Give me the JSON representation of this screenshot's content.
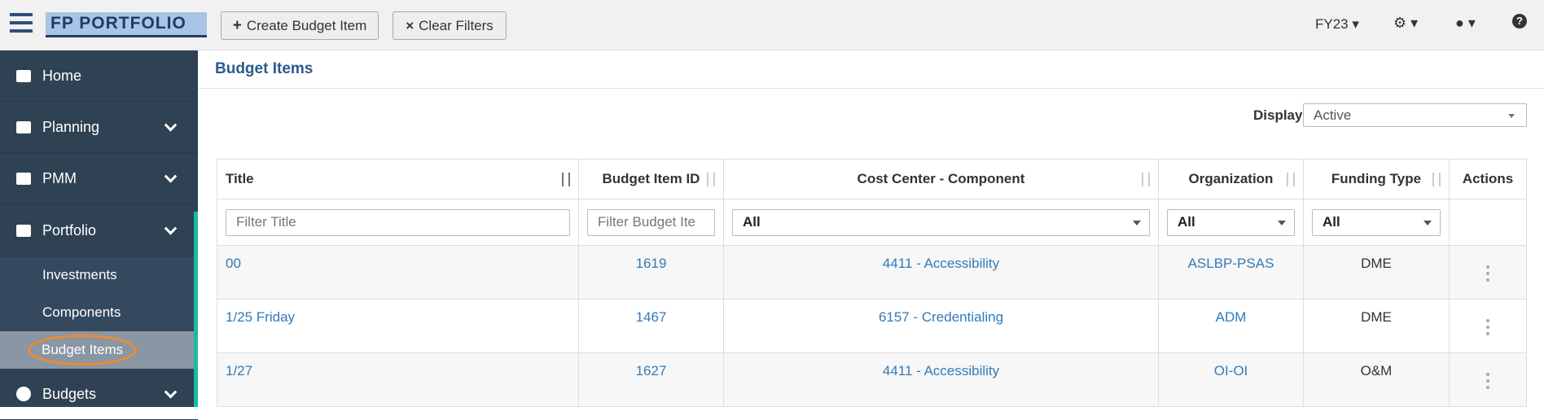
{
  "topbar": {
    "logo": "FP PORTFOLIO",
    "buttons": [
      "Create Budget Item",
      "Clear Filters"
    ],
    "fiscal_year": "FY23"
  },
  "sidebar": {
    "items": [
      "Home",
      "Planning",
      "PMM",
      "Portfolio"
    ],
    "subitems": [
      "Investments",
      "Components",
      "Budget Items"
    ],
    "last_item": "Budgets"
  },
  "page": {
    "title": "Budget Items",
    "display_label": "Display",
    "display_value": "Active"
  },
  "table": {
    "columns": [
      "Title",
      "Budget Item ID",
      "Cost Center - Component",
      "Organization",
      "Funding Type",
      "Actions"
    ],
    "filters": [
      "Filter Title",
      "Filter Budget Ite",
      "All",
      "All",
      "All"
    ],
    "rows": [
      [
        "00",
        "1619",
        "4411 - Accessibility",
        "ASLBP-PSAS",
        "DME"
      ],
      [
        "1/25 Friday",
        "1467",
        "6157 - Credentialing",
        "ADM",
        "DME"
      ],
      [
        "1/27",
        "1627",
        "4411 - Accessibility",
        "OI-OI",
        "O&M"
      ]
    ]
  }
}
